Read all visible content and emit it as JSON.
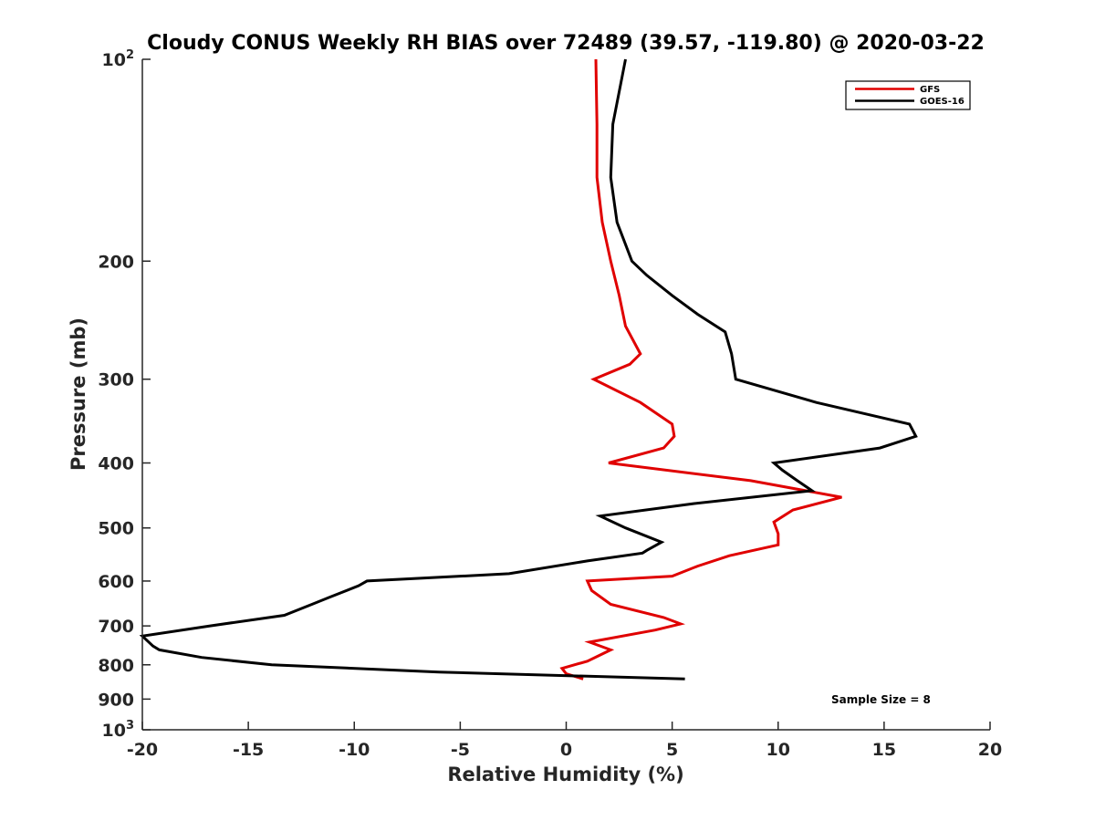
{
  "chart_data": {
    "type": "line",
    "title": "Cloudy CONUS Weekly RH BIAS over 72489 (39.57, -119.80) @ 2020-03-22",
    "xlabel": "Relative Humidity (%)",
    "ylabel": "Pressure (mb)",
    "xlim": [
      -20,
      20
    ],
    "ylim": [
      1000,
      100
    ],
    "yscale": "log",
    "y_reversed": true,
    "x_ticks": [
      -20,
      -15,
      -10,
      -5,
      0,
      5,
      10,
      15,
      20
    ],
    "x_tick_labels": [
      "-20",
      "-15",
      "-10",
      "-5",
      "0",
      "5",
      "10",
      "15",
      "20"
    ],
    "y_ticks": [
      100,
      200,
      300,
      400,
      500,
      600,
      700,
      800,
      900,
      1000
    ],
    "y_tick_labels": [
      {
        "base": "10",
        "exp": "2"
      },
      {
        "base": "200",
        "exp": ""
      },
      {
        "base": "300",
        "exp": ""
      },
      {
        "base": "400",
        "exp": ""
      },
      {
        "base": "500",
        "exp": ""
      },
      {
        "base": "600",
        "exp": ""
      },
      {
        "base": "700",
        "exp": ""
      },
      {
        "base": "800",
        "exp": ""
      },
      {
        "base": "900",
        "exp": ""
      },
      {
        "base": "10",
        "exp": "3"
      }
    ],
    "grid": false,
    "legend_position": "top-right",
    "series": [
      {
        "name": "GFS",
        "color": "#e00000",
        "points": [
          [
            1.4,
            100
          ],
          [
            1.45,
            125
          ],
          [
            1.45,
            150
          ],
          [
            1.7,
            175
          ],
          [
            2.1,
            200
          ],
          [
            2.5,
            225
          ],
          [
            2.8,
            250
          ],
          [
            3.5,
            275
          ],
          [
            3.0,
            285
          ],
          [
            1.3,
            300
          ],
          [
            3.5,
            325
          ],
          [
            5.0,
            350
          ],
          [
            5.1,
            365
          ],
          [
            4.6,
            380
          ],
          [
            2.0,
            400
          ],
          [
            8.7,
            425
          ],
          [
            13.0,
            450
          ],
          [
            10.7,
            470
          ],
          [
            9.8,
            490
          ],
          [
            10.0,
            510
          ],
          [
            10.0,
            530
          ],
          [
            7.7,
            550
          ],
          [
            6.2,
            570
          ],
          [
            5.0,
            590
          ],
          [
            1.0,
            600
          ],
          [
            1.2,
            620
          ],
          [
            2.1,
            650
          ],
          [
            4.6,
            680
          ],
          [
            5.4,
            695
          ],
          [
            4.2,
            710
          ],
          [
            1.1,
            740
          ],
          [
            2.1,
            760
          ],
          [
            1.0,
            790
          ],
          [
            -0.2,
            810
          ],
          [
            0.0,
            825
          ],
          [
            0.8,
            840
          ]
        ]
      },
      {
        "name": "GOES-16",
        "color": "#000000",
        "points": [
          [
            2.8,
            100
          ],
          [
            2.2,
            125
          ],
          [
            2.1,
            150
          ],
          [
            2.4,
            175
          ],
          [
            3.1,
            200
          ],
          [
            3.8,
            210
          ],
          [
            5.0,
            225
          ],
          [
            6.2,
            240
          ],
          [
            7.5,
            255
          ],
          [
            7.8,
            275
          ],
          [
            8.0,
            300
          ],
          [
            11.8,
            325
          ],
          [
            16.2,
            350
          ],
          [
            16.5,
            365
          ],
          [
            14.8,
            380
          ],
          [
            9.8,
            400
          ],
          [
            10.2,
            410
          ],
          [
            10.9,
            425
          ],
          [
            11.6,
            440
          ],
          [
            6.0,
            460
          ],
          [
            1.6,
            480
          ],
          [
            2.8,
            500
          ],
          [
            4.5,
            525
          ],
          [
            3.8,
            540
          ],
          [
            3.6,
            545
          ],
          [
            1.0,
            560
          ],
          [
            -2.7,
            585
          ],
          [
            -9.4,
            600
          ],
          [
            -9.8,
            610
          ],
          [
            -11.2,
            635
          ],
          [
            -12.0,
            650
          ],
          [
            -13.3,
            675
          ],
          [
            -16.8,
            700
          ],
          [
            -20.0,
            725
          ],
          [
            -19.5,
            750
          ],
          [
            -19.2,
            760
          ],
          [
            -17.2,
            780
          ],
          [
            -13.9,
            800
          ],
          [
            -6.0,
            820
          ],
          [
            5.6,
            840
          ]
        ]
      }
    ],
    "annotations": [
      {
        "text": "Sample Size = 8",
        "x": 13,
        "y": 900
      }
    ]
  }
}
